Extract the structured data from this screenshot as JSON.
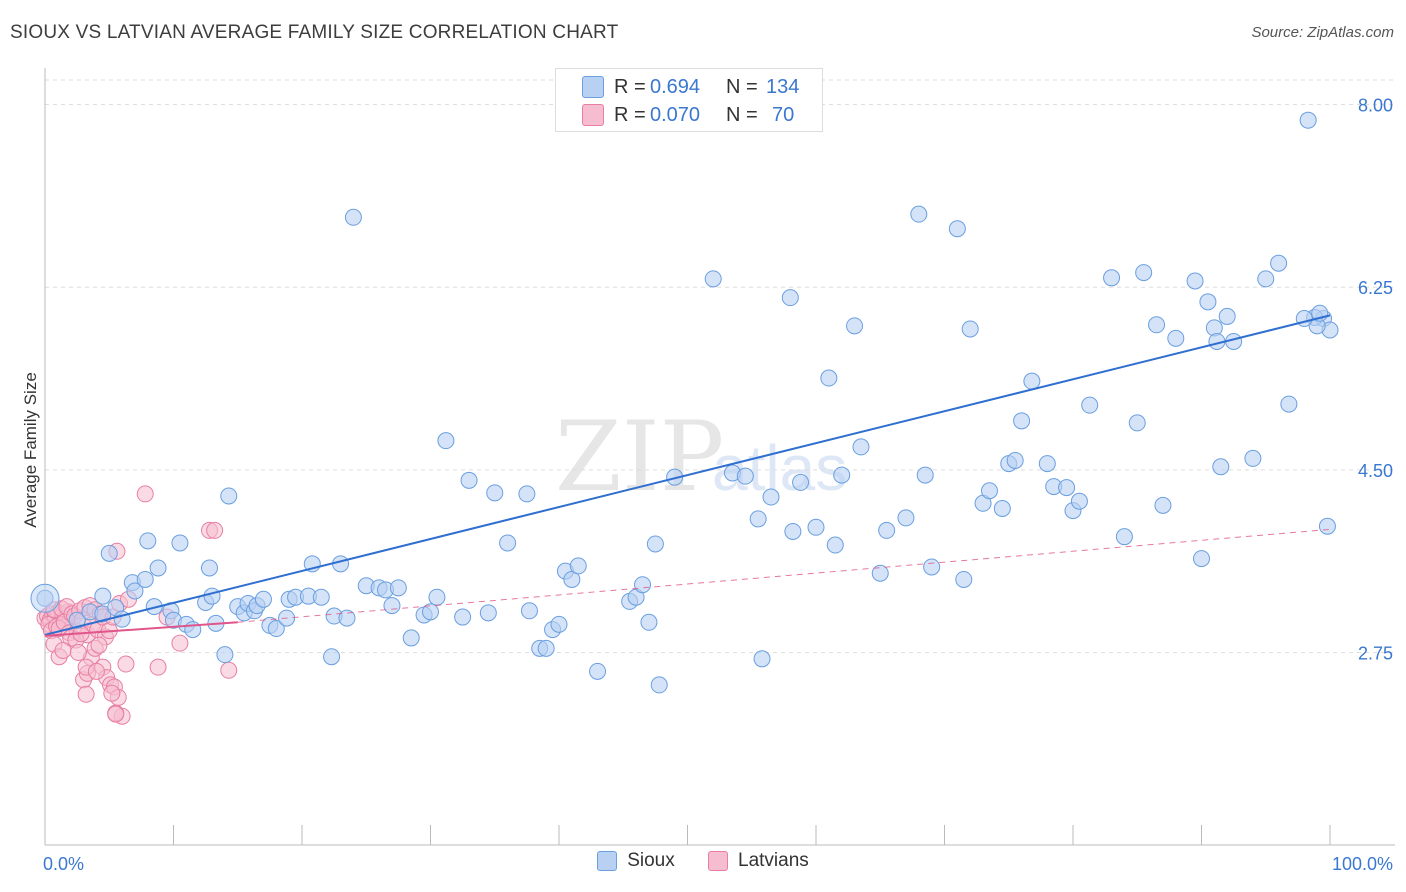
{
  "title": "SIOUX VS LATVIAN AVERAGE FAMILY SIZE CORRELATION CHART",
  "source": "Source: ZipAtlas.com",
  "watermark": {
    "zip": "ZIP",
    "atlas": "atlas"
  },
  "colors": {
    "sioux": "#6a9fe0",
    "sioux_fill": "#b8d1f3",
    "sioux_line": "#2f6fd0",
    "latvians": "#e87fa3",
    "latvians_fill": "#f6bdd0",
    "latvians_line": "#e0558a",
    "axis_text": "#3a78d0",
    "grid": "#dddddd"
  },
  "stats": [
    {
      "series": "Sioux",
      "r_label": "R =",
      "r_value": "0.694",
      "n_label": "N =",
      "n_value": "134"
    },
    {
      "series": "Latvians",
      "r_label": "R =",
      "r_value": "0.070",
      "n_label": "N =",
      "n_value": "70"
    }
  ],
  "legend": [
    {
      "label": "Sioux"
    },
    {
      "label": "Latvians"
    }
  ],
  "chart_data": {
    "type": "scatter",
    "title": "SIOUX VS LATVIAN AVERAGE FAMILY SIZE CORRELATION CHART",
    "xlabel": "",
    "ylabel": "Average Family Size",
    "xlim": [
      0,
      100
    ],
    "ylim": [
      1.05,
      8.35
    ],
    "x_tick_labels": [
      "0.0%",
      "100.0%"
    ],
    "y_ticks": [
      2.75,
      4.5,
      6.25,
      8.0
    ],
    "y_tick_labels": [
      "2.75",
      "4.50",
      "6.25",
      "8.00"
    ],
    "grid": true,
    "legend_position": "bottom-center",
    "series": [
      {
        "name": "Sioux",
        "trend": {
          "x": [
            0,
            100
          ],
          "y": [
            2.92,
            5.98
          ]
        },
        "points": [
          [
            0.0,
            3.27
          ],
          [
            2.5,
            3.06
          ],
          [
            3.5,
            3.14
          ],
          [
            4.5,
            3.12
          ],
          [
            5.5,
            3.18
          ],
          [
            6.0,
            3.07
          ],
          [
            4.5,
            3.29
          ],
          [
            5.0,
            3.7
          ],
          [
            6.8,
            3.42
          ],
          [
            7.0,
            3.34
          ],
          [
            7.8,
            3.45
          ],
          [
            8.0,
            3.82
          ],
          [
            8.5,
            3.19
          ],
          [
            8.8,
            3.56
          ],
          [
            9.8,
            3.15
          ],
          [
            10.0,
            3.06
          ],
          [
            10.5,
            3.8
          ],
          [
            11.0,
            3.02
          ],
          [
            11.5,
            2.97
          ],
          [
            12.5,
            3.23
          ],
          [
            12.8,
            3.56
          ],
          [
            13.0,
            3.29
          ],
          [
            13.3,
            3.03
          ],
          [
            14.0,
            2.73
          ],
          [
            14.3,
            4.25
          ],
          [
            15.0,
            3.19
          ],
          [
            15.5,
            3.13
          ],
          [
            15.8,
            3.22
          ],
          [
            16.3,
            3.15
          ],
          [
            16.5,
            3.2
          ],
          [
            17.0,
            3.26
          ],
          [
            17.5,
            3.01
          ],
          [
            18.0,
            2.98
          ],
          [
            18.8,
            3.08
          ],
          [
            19.0,
            3.26
          ],
          [
            19.5,
            3.28
          ],
          [
            20.5,
            3.29
          ],
          [
            20.8,
            3.6
          ],
          [
            21.5,
            3.28
          ],
          [
            22.3,
            2.71
          ],
          [
            22.5,
            3.1
          ],
          [
            23.0,
            3.6
          ],
          [
            23.5,
            3.08
          ],
          [
            24.0,
            6.92
          ],
          [
            25.0,
            3.39
          ],
          [
            26.0,
            3.37
          ],
          [
            26.5,
            3.35
          ],
          [
            27.0,
            3.2
          ],
          [
            27.5,
            3.37
          ],
          [
            28.5,
            2.89
          ],
          [
            29.5,
            3.11
          ],
          [
            30.0,
            3.14
          ],
          [
            30.5,
            3.28
          ],
          [
            31.2,
            4.78
          ],
          [
            32.5,
            3.09
          ],
          [
            33.0,
            4.4
          ],
          [
            34.5,
            3.13
          ],
          [
            35.0,
            4.28
          ],
          [
            36.0,
            3.8
          ],
          [
            37.5,
            4.27
          ],
          [
            37.7,
            3.15
          ],
          [
            38.5,
            2.79
          ],
          [
            39.0,
            2.79
          ],
          [
            39.5,
            2.97
          ],
          [
            40.0,
            3.02
          ],
          [
            40.5,
            3.53
          ],
          [
            41.0,
            3.45
          ],
          [
            41.5,
            3.58
          ],
          [
            43.0,
            2.57
          ],
          [
            45.5,
            3.24
          ],
          [
            46.0,
            3.28
          ],
          [
            46.5,
            3.4
          ],
          [
            47.0,
            3.04
          ],
          [
            47.5,
            3.79
          ],
          [
            47.8,
            2.44
          ],
          [
            49.0,
            4.43
          ],
          [
            52.0,
            6.33
          ],
          [
            53.5,
            4.47
          ],
          [
            54.5,
            4.44
          ],
          [
            55.5,
            4.03
          ],
          [
            55.8,
            2.69
          ],
          [
            56.5,
            4.24
          ],
          [
            58.0,
            6.15
          ],
          [
            58.2,
            3.91
          ],
          [
            58.8,
            4.38
          ],
          [
            60.0,
            3.95
          ],
          [
            61.0,
            5.38
          ],
          [
            61.5,
            3.78
          ],
          [
            62.0,
            4.45
          ],
          [
            63.0,
            5.88
          ],
          [
            63.5,
            4.72
          ],
          [
            65.0,
            3.51
          ],
          [
            65.5,
            3.92
          ],
          [
            67.0,
            4.04
          ],
          [
            68.0,
            6.95
          ],
          [
            68.5,
            4.45
          ],
          [
            69.0,
            3.57
          ],
          [
            71.0,
            6.81
          ],
          [
            71.5,
            3.45
          ],
          [
            72.0,
            5.85
          ],
          [
            73.0,
            4.18
          ],
          [
            73.5,
            4.3
          ],
          [
            74.5,
            4.13
          ],
          [
            75.0,
            4.56
          ],
          [
            75.5,
            4.59
          ],
          [
            76.0,
            4.97
          ],
          [
            76.8,
            5.35
          ],
          [
            78.0,
            4.56
          ],
          [
            78.5,
            4.34
          ],
          [
            79.5,
            4.33
          ],
          [
            80.0,
            4.11
          ],
          [
            80.5,
            4.2
          ],
          [
            81.3,
            5.12
          ],
          [
            83.0,
            6.34
          ],
          [
            84.0,
            3.86
          ],
          [
            85.0,
            4.95
          ],
          [
            85.5,
            6.39
          ],
          [
            86.5,
            5.89
          ],
          [
            87.0,
            4.16
          ],
          [
            88.0,
            5.76
          ],
          [
            89.5,
            6.31
          ],
          [
            90.0,
            3.65
          ],
          [
            90.5,
            6.11
          ],
          [
            91.0,
            5.86
          ],
          [
            91.2,
            5.73
          ],
          [
            91.5,
            4.53
          ],
          [
            92.5,
            5.73
          ],
          [
            94.0,
            4.61
          ],
          [
            95.0,
            6.33
          ],
          [
            96.0,
            6.48
          ],
          [
            96.8,
            5.13
          ],
          [
            98.3,
            7.85
          ],
          [
            99.5,
            5.95
          ],
          [
            100.0,
            5.84
          ],
          [
            99.8,
            3.96
          ],
          [
            98.8,
            5.96
          ],
          [
            99.0,
            5.88
          ],
          [
            92.0,
            5.97
          ],
          [
            98.0,
            5.95
          ],
          [
            99.2,
            6.0
          ]
        ]
      },
      {
        "name": "Latvians",
        "trend": {
          "x": [
            0,
            15
          ],
          "y": [
            2.91,
            3.04
          ]
        },
        "trend_dashed": {
          "x": [
            15,
            100
          ],
          "y": [
            3.04,
            3.93
          ]
        },
        "points": [
          [
            0.0,
            3.08
          ],
          [
            0.2,
            3.1
          ],
          [
            0.4,
            3.06
          ],
          [
            0.6,
            3.12
          ],
          [
            0.8,
            3.09
          ],
          [
            1.0,
            3.13
          ],
          [
            1.2,
            3.05
          ],
          [
            1.4,
            3.11
          ],
          [
            1.6,
            3.07
          ],
          [
            1.8,
            3.14
          ],
          [
            0.3,
            3.02
          ],
          [
            0.5,
            2.96
          ],
          [
            0.7,
            3.16
          ],
          [
            0.9,
            3.0
          ],
          [
            1.1,
            2.98
          ],
          [
            1.3,
            3.17
          ],
          [
            1.5,
            3.04
          ],
          [
            1.7,
            3.19
          ],
          [
            1.9,
            2.94
          ],
          [
            2.1,
            3.12
          ],
          [
            2.3,
            3.1
          ],
          [
            2.5,
            2.95
          ],
          [
            2.7,
            3.15
          ],
          [
            2.9,
            3.06
          ],
          [
            3.1,
            3.18
          ],
          [
            3.3,
            2.92
          ],
          [
            3.5,
            3.2
          ],
          [
            3.7,
            3.02
          ],
          [
            3.9,
            3.16
          ],
          [
            4.1,
            2.97
          ],
          [
            4.3,
            3.12
          ],
          [
            4.5,
            3.09
          ],
          [
            4.7,
            2.9
          ],
          [
            5.0,
            2.96
          ],
          [
            5.3,
            3.09
          ],
          [
            5.6,
            3.72
          ],
          [
            5.8,
            3.22
          ],
          [
            6.3,
            2.64
          ],
          [
            7.8,
            4.27
          ],
          [
            8.8,
            2.61
          ],
          [
            9.5,
            3.09
          ],
          [
            10.5,
            2.84
          ],
          [
            12.8,
            3.92
          ],
          [
            13.2,
            3.92
          ],
          [
            14.3,
            2.58
          ],
          [
            0.7,
            2.83
          ],
          [
            1.1,
            2.71
          ],
          [
            2.0,
            2.89
          ],
          [
            2.4,
            2.87
          ],
          [
            2.8,
            2.93
          ],
          [
            3.0,
            2.49
          ],
          [
            3.3,
            2.55
          ],
          [
            3.6,
            2.7
          ],
          [
            3.9,
            2.79
          ],
          [
            4.2,
            2.82
          ],
          [
            4.5,
            2.61
          ],
          [
            4.8,
            2.51
          ],
          [
            5.1,
            2.44
          ],
          [
            5.4,
            2.42
          ],
          [
            5.7,
            2.32
          ],
          [
            6.0,
            2.14
          ],
          [
            3.2,
            2.35
          ],
          [
            5.2,
            2.36
          ],
          [
            5.5,
            2.17
          ],
          [
            5.5,
            2.16
          ],
          [
            6.5,
            3.26
          ],
          [
            1.4,
            2.77
          ],
          [
            2.6,
            2.75
          ],
          [
            3.2,
            2.61
          ],
          [
            4.0,
            2.57
          ]
        ]
      }
    ]
  }
}
